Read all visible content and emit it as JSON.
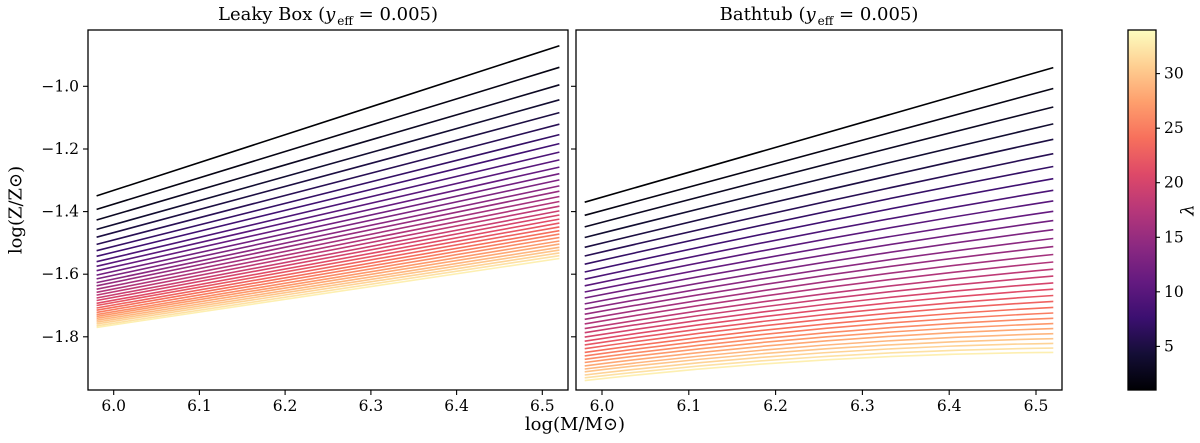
{
  "figure": {
    "background": "#ffffff",
    "text_color": "#000000"
  },
  "chart_data": {
    "type": "line",
    "xlabel": "log(M/M⊙)",
    "ylabel": "log(Z/Z⊙)",
    "xlim": [
      5.97,
      6.53
    ],
    "ylim": [
      -1.97,
      -0.82
    ],
    "grid": false,
    "x_ticks": [
      6.0,
      6.1,
      6.2,
      6.3,
      6.4,
      6.5
    ],
    "x_tick_labels": [
      "6.0",
      "6.1",
      "6.2",
      "6.3",
      "6.4",
      "6.5"
    ],
    "y_ticks": [
      -1.0,
      -1.2,
      -1.4,
      -1.6,
      -1.8
    ],
    "y_tick_labels": [
      "−1.0",
      "−1.2",
      "−1.4",
      "−1.6",
      "−1.8"
    ],
    "colorbar": {
      "label": "λ",
      "min": 1,
      "max": 34,
      "ticks": [
        5,
        10,
        15,
        20,
        25,
        30
      ],
      "tick_labels": [
        "5",
        "10",
        "15",
        "20",
        "25",
        "30"
      ],
      "colormap": "magma",
      "stops": [
        [
          0.0,
          "#000004"
        ],
        [
          0.1,
          "#140e36"
        ],
        [
          0.2,
          "#3b0f70"
        ],
        [
          0.3,
          "#641a80"
        ],
        [
          0.4,
          "#8c2981"
        ],
        [
          0.5,
          "#b73779"
        ],
        [
          0.6,
          "#de4968"
        ],
        [
          0.7,
          "#f7705c"
        ],
        [
          0.8,
          "#fe9f6d"
        ],
        [
          0.9,
          "#fecf92"
        ],
        [
          1.0,
          "#fcfdbf"
        ]
      ]
    },
    "panels": [
      {
        "title": {
          "prefix": "Leaky Box (",
          "var": "y",
          "sub": "eff",
          "suffix": " = 0.005)"
        },
        "title_text": "Leaky Box (y eff = 0.005)",
        "x": [
          5.98,
          6.52
        ],
        "line_format": [
          "lambda",
          "y_at_x0",
          "y_at_x1"
        ],
        "lines": [
          [
            1,
            -1.35,
            -0.87
          ],
          [
            2,
            -1.393,
            -0.939
          ],
          [
            3,
            -1.427,
            -0.995
          ],
          [
            4,
            -1.457,
            -1.043
          ],
          [
            5,
            -1.482,
            -1.084
          ],
          [
            6,
            -1.505,
            -1.121
          ],
          [
            7,
            -1.525,
            -1.154
          ],
          [
            8,
            -1.543,
            -1.183
          ],
          [
            9,
            -1.56,
            -1.21
          ],
          [
            10,
            -1.575,
            -1.235
          ],
          [
            11,
            -1.589,
            -1.258
          ],
          [
            12,
            -1.603,
            -1.279
          ],
          [
            13,
            -1.615,
            -1.299
          ],
          [
            14,
            -1.627,
            -1.318
          ],
          [
            15,
            -1.637,
            -1.335
          ],
          [
            16,
            -1.648,
            -1.352
          ],
          [
            17,
            -1.658,
            -1.368
          ],
          [
            18,
            -1.667,
            -1.383
          ],
          [
            19,
            -1.676,
            -1.398
          ],
          [
            20,
            -1.684,
            -1.411
          ],
          [
            21,
            -1.693,
            -1.424
          ],
          [
            22,
            -1.7,
            -1.437
          ],
          [
            23,
            -1.708,
            -1.449
          ],
          [
            24,
            -1.715,
            -1.461
          ],
          [
            25,
            -1.722,
            -1.472
          ],
          [
            26,
            -1.729,
            -1.483
          ],
          [
            27,
            -1.735,
            -1.494
          ],
          [
            28,
            -1.741,
            -1.504
          ],
          [
            29,
            -1.747,
            -1.514
          ],
          [
            30,
            -1.753,
            -1.523
          ],
          [
            31,
            -1.759,
            -1.532
          ],
          [
            32,
            -1.765,
            -1.541
          ],
          [
            33,
            -1.77,
            -1.55
          ]
        ]
      },
      {
        "title": {
          "prefix": "Bathtub (",
          "var": "y",
          "sub": "eff",
          "suffix": " = 0.005)"
        },
        "title_text": "Bathtub (y eff = 0.005)",
        "x": [
          5.98,
          6.25,
          6.52
        ],
        "line_format": [
          "lambda",
          "y_at_x0",
          "y_at_xmid",
          "y_at_x1"
        ],
        "lines": [
          [
            1,
            -1.37,
            -1.155,
            -0.94
          ],
          [
            2,
            -1.412,
            -1.208,
            -1.007
          ],
          [
            3,
            -1.449,
            -1.255,
            -1.066
          ],
          [
            4,
            -1.483,
            -1.298,
            -1.12
          ],
          [
            5,
            -1.514,
            -1.337,
            -1.169
          ],
          [
            6,
            -1.542,
            -1.373,
            -1.215
          ],
          [
            7,
            -1.568,
            -1.405,
            -1.256
          ],
          [
            8,
            -1.593,
            -1.436,
            -1.295
          ],
          [
            9,
            -1.616,
            -1.465,
            -1.332
          ],
          [
            10,
            -1.637,
            -1.492,
            -1.366
          ],
          [
            11,
            -1.657,
            -1.518,
            -1.399
          ],
          [
            12,
            -1.676,
            -1.542,
            -1.429
          ],
          [
            13,
            -1.695,
            -1.565,
            -1.458
          ],
          [
            14,
            -1.712,
            -1.587,
            -1.486
          ],
          [
            15,
            -1.728,
            -1.607,
            -1.512
          ],
          [
            16,
            -1.744,
            -1.627,
            -1.537
          ],
          [
            17,
            -1.759,
            -1.646,
            -1.561
          ],
          [
            18,
            -1.774,
            -1.665,
            -1.584
          ],
          [
            19,
            -1.787,
            -1.682,
            -1.606
          ],
          [
            20,
            -1.801,
            -1.699,
            -1.628
          ],
          [
            21,
            -1.814,
            -1.715,
            -1.648
          ],
          [
            22,
            -1.826,
            -1.731,
            -1.668
          ],
          [
            23,
            -1.838,
            -1.746,
            -1.687
          ],
          [
            24,
            -1.85,
            -1.761,
            -1.706
          ],
          [
            25,
            -1.861,
            -1.775,
            -1.724
          ],
          [
            26,
            -1.872,
            -1.789,
            -1.741
          ],
          [
            27,
            -1.882,
            -1.802,
            -1.758
          ],
          [
            28,
            -1.893,
            -1.815,
            -1.774
          ],
          [
            29,
            -1.903,
            -1.828,
            -1.79
          ],
          [
            30,
            -1.912,
            -1.84,
            -1.806
          ],
          [
            31,
            -1.922,
            -1.852,
            -1.821
          ],
          [
            32,
            -1.931,
            -1.864,
            -1.836
          ],
          [
            33,
            -1.94,
            -1.875,
            -1.85
          ]
        ]
      }
    ]
  }
}
